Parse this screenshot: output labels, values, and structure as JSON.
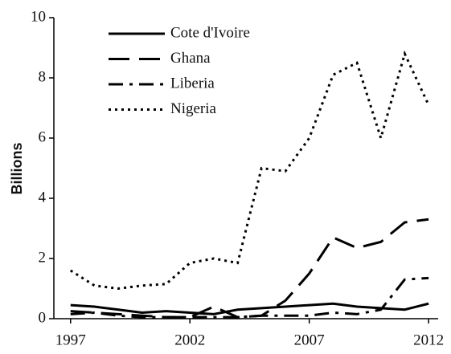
{
  "chart_data": {
    "type": "line",
    "ylabel": "Billions",
    "x": [
      1997,
      1998,
      1999,
      2000,
      2001,
      2002,
      2003,
      2004,
      2005,
      2006,
      2007,
      2008,
      2009,
      2010,
      2011,
      2012
    ],
    "xlim": [
      1996.3,
      2012.4
    ],
    "xticks": [
      1997,
      2002,
      2007,
      2012
    ],
    "ylim": [
      0,
      10
    ],
    "yticks": [
      0,
      2,
      4,
      6,
      8,
      10
    ],
    "legend": "upper left",
    "series": [
      {
        "name": "Cote d'Ivoire",
        "color": "#000000",
        "dash": "solid",
        "values": [
          0.45,
          0.4,
          0.3,
          0.2,
          0.25,
          0.2,
          0.15,
          0.3,
          0.35,
          0.4,
          0.45,
          0.5,
          0.4,
          0.35,
          0.3,
          0.5
        ]
      },
      {
        "name": "Ghana",
        "color": "#000000",
        "dash": "dash",
        "values": [
          0.25,
          0.2,
          0.15,
          0.1,
          0.05,
          0.05,
          0.4,
          0.05,
          0.1,
          0.6,
          1.5,
          2.7,
          2.35,
          2.55,
          3.2,
          3.3
        ]
      },
      {
        "name": "Liberia",
        "color": "#000000",
        "dash": "dashdot",
        "values": [
          0.15,
          0.2,
          0.1,
          0.05,
          0.05,
          0.05,
          0.05,
          0.05,
          0.1,
          0.1,
          0.1,
          0.2,
          0.15,
          0.3,
          1.3,
          1.35
        ]
      },
      {
        "name": "Nigeria",
        "color": "#000000",
        "dash": "dot",
        "values": [
          1.6,
          1.1,
          1.0,
          1.1,
          1.15,
          1.85,
          2.0,
          1.85,
          5.0,
          4.9,
          6.0,
          8.1,
          8.5,
          6.0,
          8.8,
          7.1
        ]
      }
    ]
  }
}
